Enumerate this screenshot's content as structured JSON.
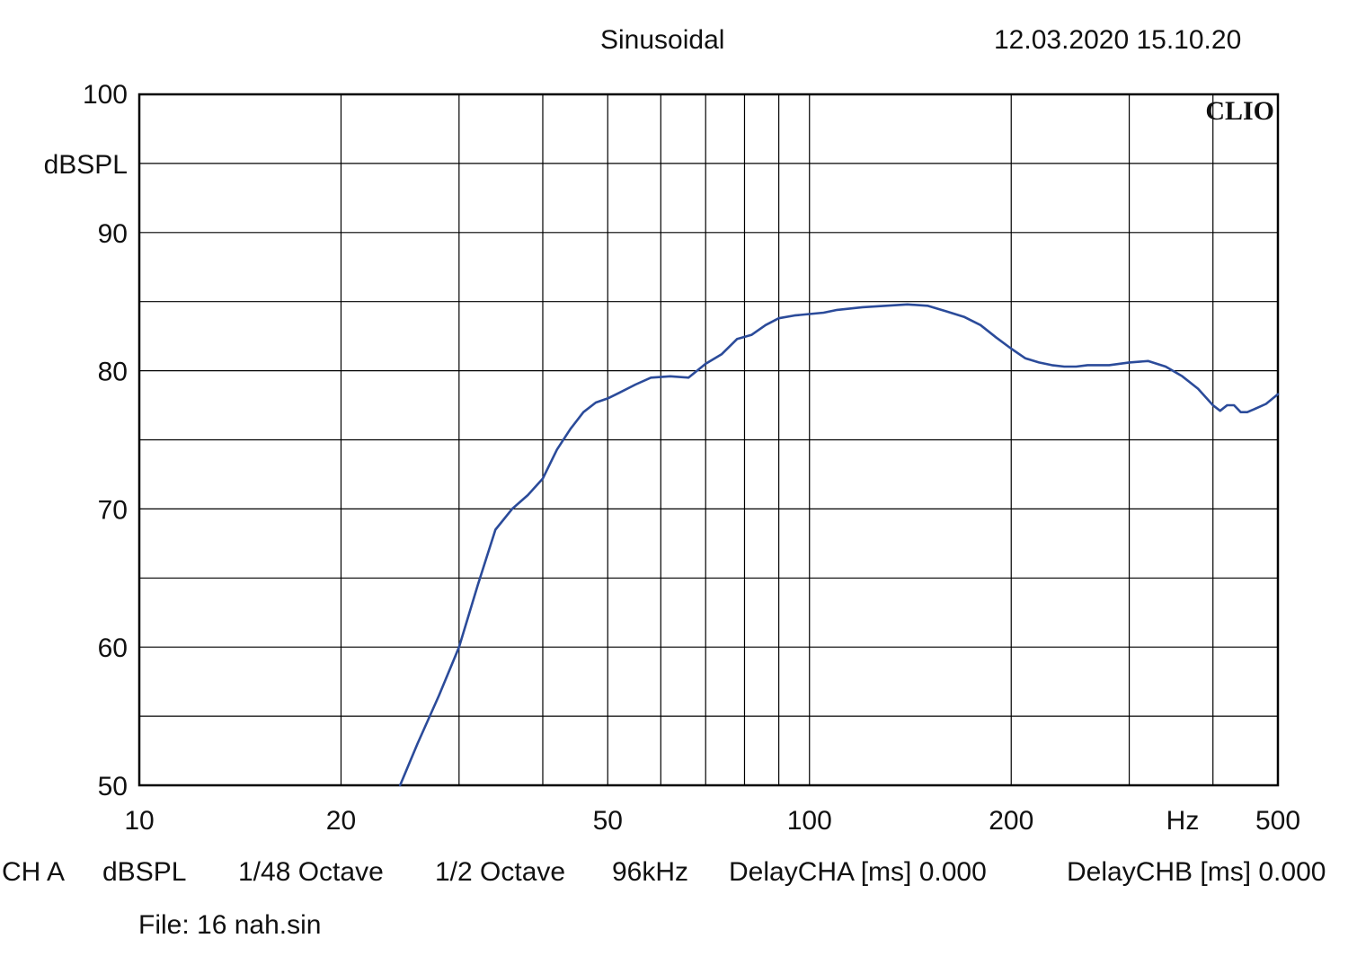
{
  "header": {
    "title": "Sinusoidal",
    "datetime": "12.03.2020 15.10.20"
  },
  "brand_label": "CLIO",
  "footer": {
    "channel": "CH A",
    "unit": "dBSPL",
    "resolution": "1/48 Octave",
    "smoothing": "1/2 Octave",
    "sample_rate": "96kHz",
    "delay_a": "DelayCHA [ms] 0.000",
    "delay_b": "DelayCHB [ms] 0.000",
    "file": "File: 16 nah.sin"
  },
  "colors": {
    "trace": "#2b4b9a",
    "grid": "#000000"
  },
  "chart_data": {
    "type": "line",
    "title": "Sinusoidal",
    "xlabel": "Hz",
    "ylabel": "dBSPL",
    "x_scale": "log",
    "xlim": [
      10,
      500
    ],
    "ylim": [
      50,
      100
    ],
    "grid": true,
    "x_tick_labels": [
      "10",
      "20",
      "50",
      "100",
      "200",
      "Hz",
      "500"
    ],
    "y_tick_labels": [
      "100",
      "dBSPL",
      "90",
      "80",
      "70",
      "60",
      "50"
    ],
    "series": [
      {
        "x": [
          24.5,
          26,
          28,
          30,
          32,
          34,
          36,
          38,
          40,
          42,
          44,
          46,
          48,
          50,
          52,
          55,
          58,
          62,
          66,
          70,
          74,
          78,
          82,
          86,
          90,
          95,
          100,
          105,
          110,
          120,
          130,
          140,
          150,
          160,
          170,
          180,
          190,
          200,
          210,
          220,
          230,
          240,
          250,
          260,
          280,
          300,
          320,
          340,
          360,
          380,
          400,
          410,
          420,
          430,
          440,
          450,
          460,
          480,
          500
        ],
        "y": [
          50,
          53,
          56.5,
          60,
          64.5,
          68.5,
          70,
          71,
          72.2,
          74.3,
          75.8,
          77,
          77.7,
          78,
          78.4,
          79,
          79.5,
          79.6,
          79.5,
          80.5,
          81.2,
          82.3,
          82.6,
          83.3,
          83.8,
          84,
          84.1,
          84.2,
          84.4,
          84.6,
          84.7,
          84.8,
          84.7,
          84.3,
          83.9,
          83.3,
          82.4,
          81.6,
          80.9,
          80.6,
          80.4,
          80.3,
          80.3,
          80.4,
          80.4,
          80.6,
          80.7,
          80.3,
          79.6,
          78.7,
          77.5,
          77.1,
          77.5,
          77.5,
          77,
          77,
          77.2,
          77.6,
          78.3
        ]
      }
    ]
  }
}
